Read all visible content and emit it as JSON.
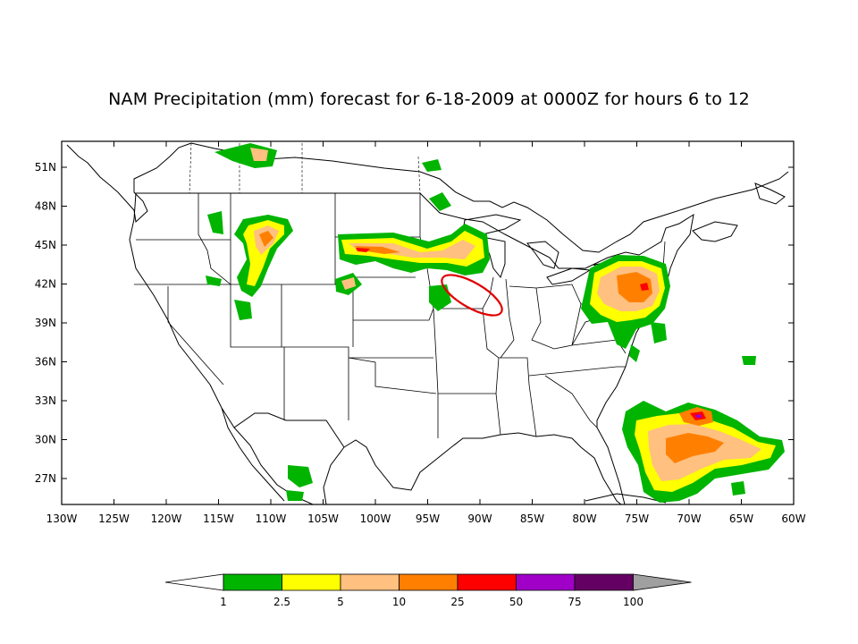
{
  "title": "NAM Precipitation (mm) forecast for 6-18-2009 at 0000Z for hours 6 to 12",
  "map": {
    "lon_range": [
      -130,
      -60
    ],
    "lat_range": [
      25,
      53
    ],
    "lat_ticks": [
      {
        "value": 51,
        "label": "51N"
      },
      {
        "value": 48,
        "label": "48N"
      },
      {
        "value": 45,
        "label": "45N"
      },
      {
        "value": 42,
        "label": "42N"
      },
      {
        "value": 39,
        "label": "39N"
      },
      {
        "value": 36,
        "label": "36N"
      },
      {
        "value": 33,
        "label": "33N"
      },
      {
        "value": 30,
        "label": "30N"
      },
      {
        "value": 27,
        "label": "27N"
      }
    ],
    "lon_ticks": [
      {
        "value": -130,
        "label": "130W"
      },
      {
        "value": -125,
        "label": "125W"
      },
      {
        "value": -120,
        "label": "120W"
      },
      {
        "value": -115,
        "label": "115W"
      },
      {
        "value": -110,
        "label": "110W"
      },
      {
        "value": -105,
        "label": "105W"
      },
      {
        "value": -100,
        "label": "100W"
      },
      {
        "value": -95,
        "label": "95W"
      },
      {
        "value": -90,
        "label": "90W"
      },
      {
        "value": -85,
        "label": "85W"
      },
      {
        "value": -80,
        "label": "80W"
      },
      {
        "value": -75,
        "label": "75W"
      },
      {
        "value": -70,
        "label": "70W"
      },
      {
        "value": -65,
        "label": "65W"
      },
      {
        "value": -60,
        "label": "60W"
      }
    ],
    "highlight_ellipse": {
      "center_lon": -92,
      "center_lat": 41.1,
      "color": "#e00000"
    }
  },
  "colorbar": {
    "levels": [
      {
        "label": "1",
        "color": "#00b400"
      },
      {
        "label": "2.5",
        "color": "#ffff00"
      },
      {
        "label": "5",
        "color": "#ffc080"
      },
      {
        "label": "10",
        "color": "#ff8000"
      },
      {
        "label": "25",
        "color": "#ff0000"
      },
      {
        "label": "50",
        "color": "#a000c8"
      },
      {
        "label": "75",
        "color": "#640064"
      },
      {
        "label": "100",
        "color": "#a0a0a0"
      }
    ],
    "low_end_color": "#ffffff",
    "high_end_color": "#a0a0a0"
  }
}
